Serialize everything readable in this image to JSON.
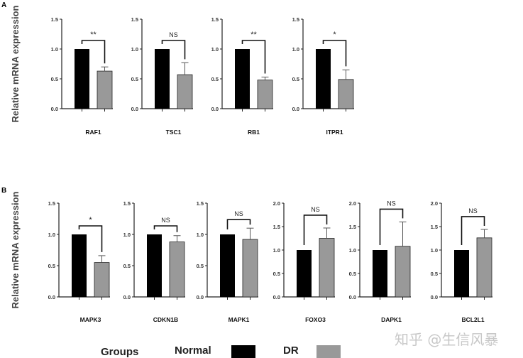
{
  "colors": {
    "normal": "#000000",
    "dr": "#999999"
  },
  "y_label": "Relative mRNA expression",
  "legend": {
    "title": "Groups",
    "normal": "Normal",
    "dr": "DR"
  },
  "watermark": "知乎 @生信风暴",
  "chart_data": [
    {
      "panel": "A",
      "type": "bar",
      "ylabel": "Relative mRNA expression",
      "legend": [
        "Normal",
        "DR"
      ],
      "charts": [
        {
          "category": "RAF1",
          "ylim": [
            0,
            1.5
          ],
          "yticks": [
            "0.0",
            "0.5",
            "1.0",
            "1.5"
          ],
          "normal": 1.0,
          "dr": 0.63,
          "dr_err": 0.07,
          "sig": "**"
        },
        {
          "category": "TSC1",
          "ylim": [
            0,
            1.5
          ],
          "yticks": [
            "0.0",
            "0.5",
            "1.0",
            "1.5"
          ],
          "normal": 1.0,
          "dr": 0.57,
          "dr_err": 0.2,
          "sig": "NS"
        },
        {
          "category": "RB1",
          "ylim": [
            0,
            1.5
          ],
          "yticks": [
            "0.0",
            "0.5",
            "1.0",
            "1.5"
          ],
          "normal": 1.0,
          "dr": 0.48,
          "dr_err": 0.05,
          "sig": "**"
        },
        {
          "category": "ITPR1",
          "ylim": [
            0,
            1.5
          ],
          "yticks": [
            "0.0",
            "0.5",
            "1.0",
            "1.5"
          ],
          "normal": 1.0,
          "dr": 0.49,
          "dr_err": 0.16,
          "sig": "*"
        }
      ]
    },
    {
      "panel": "B",
      "type": "bar",
      "ylabel": "Relative mRNA expression",
      "legend": [
        "Normal",
        "DR"
      ],
      "charts": [
        {
          "category": "MAPK3",
          "ylim": [
            0,
            1.5
          ],
          "yticks": [
            "0.0",
            "0.5",
            "1.0",
            "1.5"
          ],
          "normal": 1.0,
          "dr": 0.55,
          "dr_err": 0.11,
          "sig": "*"
        },
        {
          "category": "CDKN1B",
          "ylim": [
            0,
            1.5
          ],
          "yticks": [
            "0.0",
            "0.5",
            "1.0",
            "1.5"
          ],
          "normal": 1.0,
          "dr": 0.88,
          "dr_err": 0.1,
          "sig": "NS"
        },
        {
          "category": "MAPK1",
          "ylim": [
            0,
            1.5
          ],
          "yticks": [
            "0.0",
            "0.5",
            "1.0",
            "1.5"
          ],
          "normal": 1.0,
          "dr": 0.92,
          "dr_err": 0.18,
          "sig": "NS"
        },
        {
          "category": "FOXO3",
          "ylim": [
            0,
            2.0
          ],
          "yticks": [
            "0.0",
            "0.5",
            "1.0",
            "1.5",
            "2.0"
          ],
          "normal": 1.0,
          "dr": 1.25,
          "dr_err": 0.22,
          "sig": "NS"
        },
        {
          "category": "DAPK1",
          "ylim": [
            0,
            2.0
          ],
          "yticks": [
            "0.0",
            "0.5",
            "1.0",
            "1.5",
            "2.0"
          ],
          "normal": 1.0,
          "dr": 1.08,
          "dr_err": 0.52,
          "sig": "NS"
        },
        {
          "category": "BCL2L1",
          "ylim": [
            0,
            2.0
          ],
          "yticks": [
            "0.0",
            "0.5",
            "1.0",
            "1.5",
            "2.0"
          ],
          "normal": 1.0,
          "dr": 1.26,
          "dr_err": 0.18,
          "sig": "NS"
        }
      ]
    }
  ]
}
